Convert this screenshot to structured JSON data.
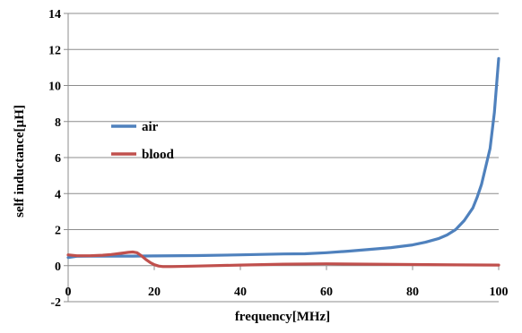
{
  "chart_data": {
    "type": "line",
    "title": "",
    "xlabel": "frequency[MHz]",
    "ylabel": "self inductance[µH]",
    "xlim": [
      0,
      100
    ],
    "ylim": [
      -2,
      14
    ],
    "x_ticks": [
      "0",
      "20",
      "40",
      "60",
      "80",
      "100"
    ],
    "y_ticks": [
      "-2",
      "0",
      "2",
      "4",
      "6",
      "8",
      "10",
      "12",
      "14"
    ],
    "grid": "horizontal",
    "legend_position": "center-left",
    "series": [
      {
        "name": "air",
        "color": "#4f81bd",
        "x": [
          0,
          2,
          5,
          10,
          15,
          20,
          30,
          40,
          50,
          55,
          60,
          65,
          70,
          75,
          80,
          83,
          86,
          88,
          90,
          92,
          94,
          95,
          96,
          97,
          98,
          98.5,
          99,
          99.5,
          100
        ],
        "y": [
          0.45,
          0.52,
          0.53,
          0.53,
          0.53,
          0.54,
          0.56,
          0.6,
          0.65,
          0.66,
          0.72,
          0.8,
          0.9,
          1.0,
          1.15,
          1.3,
          1.5,
          1.7,
          2.0,
          2.5,
          3.2,
          3.8,
          4.5,
          5.5,
          6.5,
          7.5,
          8.5,
          10.0,
          11.5
        ]
      },
      {
        "name": "blood",
        "color": "#c0504d",
        "x": [
          0,
          2,
          5,
          8,
          10,
          12,
          14,
          15,
          16,
          17,
          18,
          19,
          20,
          21,
          22,
          24,
          30,
          40,
          50,
          60,
          70,
          80,
          90,
          100
        ],
        "y": [
          0.6,
          0.55,
          0.55,
          0.58,
          0.62,
          0.68,
          0.74,
          0.76,
          0.72,
          0.55,
          0.35,
          0.18,
          0.05,
          -0.02,
          -0.05,
          -0.05,
          -0.02,
          0.03,
          0.08,
          0.1,
          0.08,
          0.06,
          0.04,
          0.03
        ]
      }
    ]
  }
}
